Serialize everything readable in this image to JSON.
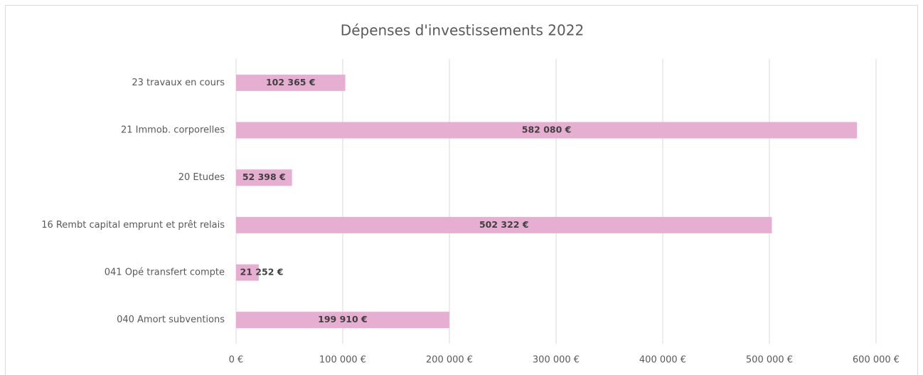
{
  "chart_data": {
    "type": "bar",
    "orientation": "horizontal",
    "title": "Dépenses d'investissements 2022",
    "categories": [
      "23 travaux en cours",
      "21 Immob. corporelles",
      "20 Etudes",
      "16 Rembt capital emprunt et prêt relais",
      "041 Opé transfert compte",
      "040 Amort subventions"
    ],
    "values": [
      102365,
      582080,
      52398,
      502322,
      21252,
      199910
    ],
    "value_labels": [
      "102 365 €",
      "582 080 €",
      "52 398 €",
      "502 322 €",
      "21 252 €",
      "199 910 €"
    ],
    "color": "#e6aed0",
    "xlim": [
      0,
      600000
    ],
    "xticks": [
      {
        "value": 0,
        "label": "0 €"
      },
      {
        "value": 100000,
        "label": "100 000 €"
      },
      {
        "value": 200000,
        "label": "200 000 €"
      },
      {
        "value": 300000,
        "label": "300 000 €"
      },
      {
        "value": 400000,
        "label": "400 000 €"
      },
      {
        "value": 500000,
        "label": "500 000 €"
      },
      {
        "value": 600000,
        "label": "600 000 €"
      }
    ],
    "grid": true
  }
}
